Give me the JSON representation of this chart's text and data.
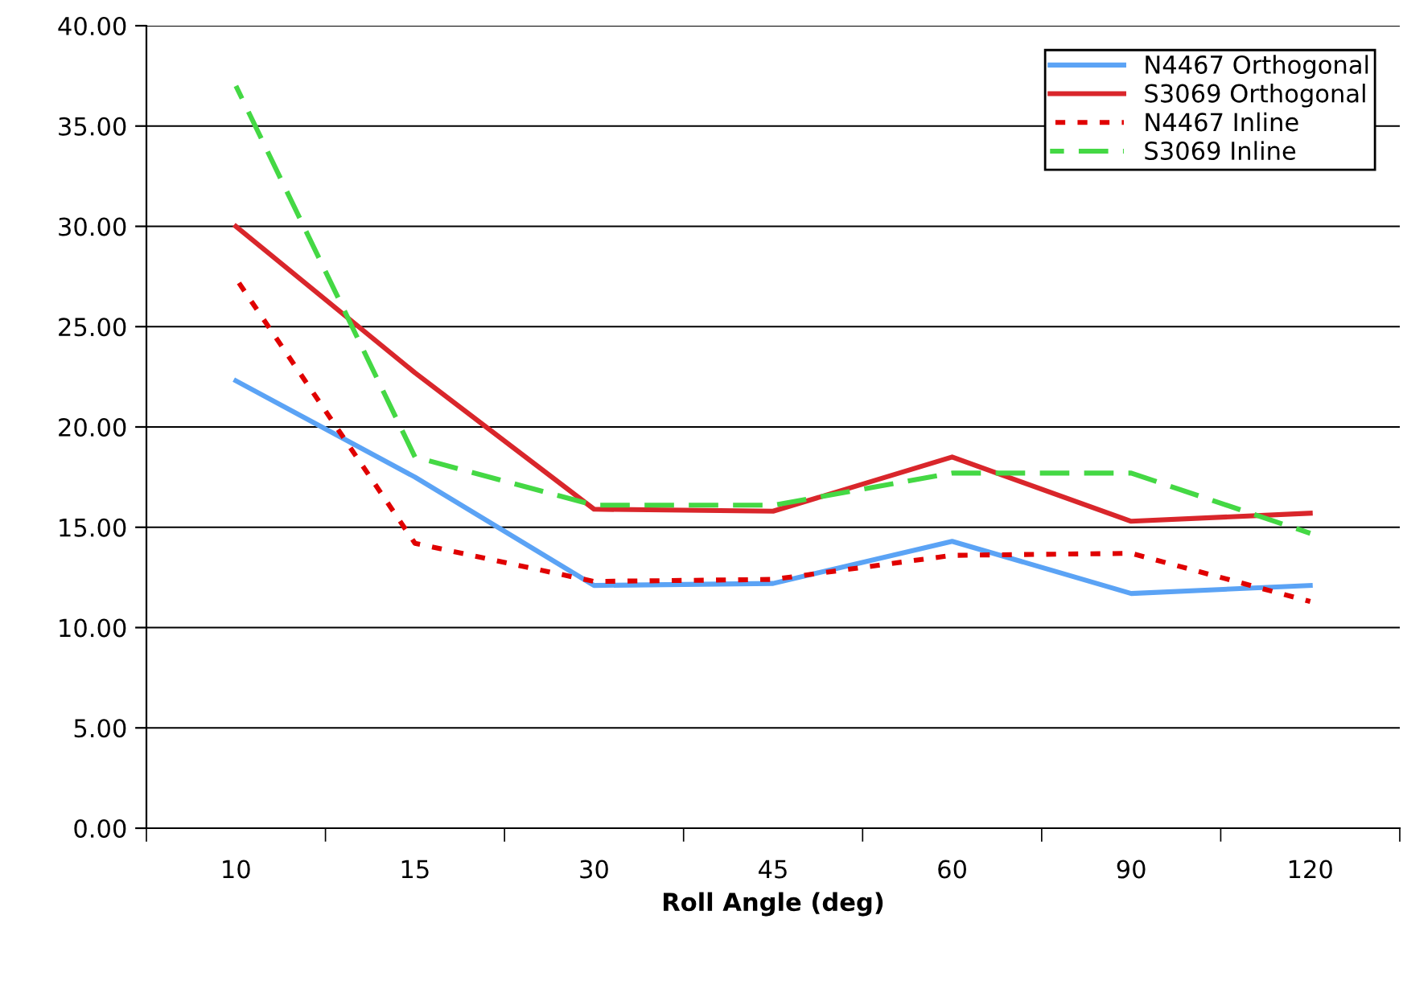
{
  "chart_data": {
    "type": "line",
    "xlabel": "Roll Angle (deg)",
    "categories": [
      "10",
      "15",
      "30",
      "45",
      "60",
      "90",
      "120"
    ],
    "series": [
      {
        "name": "N4467 Orthogonal",
        "color": "#5ba3f5",
        "line_style": "solid",
        "values": [
          22.3,
          17.5,
          12.1,
          12.2,
          14.3,
          11.7,
          12.1
        ]
      },
      {
        "name": "S3069 Orthogonal",
        "color": "#d9262b",
        "line_style": "solid",
        "values": [
          30.0,
          22.7,
          15.9,
          15.8,
          18.5,
          15.3,
          15.7
        ]
      },
      {
        "name": "N4467 Inline",
        "color": "#e00000",
        "line_style": "dotted",
        "values": [
          27.4,
          14.2,
          12.3,
          12.4,
          13.6,
          13.7,
          11.3
        ]
      },
      {
        "name": "S3069 Inline",
        "color": "#44d844",
        "line_style": "dashed",
        "values": [
          37.0,
          18.5,
          16.1,
          16.1,
          17.7,
          17.7,
          14.7
        ]
      }
    ],
    "ylim": [
      0,
      40
    ],
    "yticks": [
      {
        "value": 0,
        "label": "0.00"
      },
      {
        "value": 5,
        "label": "5.00"
      },
      {
        "value": 10,
        "label": "10.00"
      },
      {
        "value": 15,
        "label": "15.00"
      },
      {
        "value": 20,
        "label": "20.00"
      },
      {
        "value": 25,
        "label": "25.00"
      },
      {
        "value": 30,
        "label": "30.00"
      },
      {
        "value": 35,
        "label": "35.00"
      },
      {
        "value": 40,
        "label": "40.00"
      }
    ],
    "grid": "y",
    "legend": "top right",
    "marker": "none"
  }
}
